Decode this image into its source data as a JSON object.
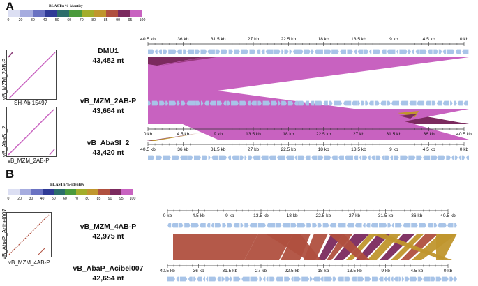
{
  "legend_colors": [
    "#dcdff3",
    "#a6acdf",
    "#6a72c2",
    "#2f3a96",
    "#2c6e6b",
    "#4a9a3c",
    "#a2ad2a",
    "#c0962d",
    "#b0503f",
    "#7b2a5e",
    "#c862c0"
  ],
  "feature_color": "#a8c4e8",
  "panelA": {
    "letter": "A",
    "legend_title": "BLASTn %-identity",
    "legend_ticks": [
      "0",
      "20",
      "30",
      "40",
      "50",
      "60",
      "70",
      "80",
      "85",
      "90",
      "95",
      "100"
    ],
    "dot1": {
      "ylabel": "vB_MZM_2AB-P",
      "xlabel": "SH-Ab 15497"
    },
    "dot2": {
      "ylabel": "vB_AbaSI_2",
      "xlabel": "vB_MZM_2AB-P"
    },
    "genomes": [
      {
        "name": "DMU1",
        "size": "43,482 nt",
        "ticks": [
          "40.5 kb",
          "36 kb",
          "31.5 kb",
          "27 kb",
          "22.5 kb",
          "18 kb",
          "13.5 kb",
          "9 kb",
          "4.5 kb",
          "0 kb"
        ]
      },
      {
        "name": "vB_MZM_2AB-P",
        "size": "43,664 nt",
        "ticks": [
          "0 kb",
          "4.5 kb",
          "9 kb",
          "13.5 kb",
          "18 kb",
          "22.5 kb",
          "27 kb",
          "31.5 kb",
          "36 kb",
          "40.5 kb"
        ]
      },
      {
        "name": "vB_AbaSI_2",
        "size": "43,420 nt",
        "ticks": [
          "40.5 kb",
          "36 kb",
          "31.5 kb",
          "27 kb",
          "22.5 kb",
          "18 kb",
          "13.5 kb",
          "9 kb",
          "4.5 kb",
          "0 kb"
        ]
      }
    ]
  },
  "panelB": {
    "letter": "B",
    "legend_title": "BLASTn %-identity",
    "legend_ticks": [
      "0",
      "20",
      "30",
      "40",
      "50",
      "60",
      "70",
      "80",
      "85",
      "90",
      "95",
      "100"
    ],
    "dot": {
      "ylabel": "vB_AbaP_Acibel007",
      "xlabel": "vB_MZM_4AB-P"
    },
    "genomes": [
      {
        "name": "vB_MZM_4AB-P",
        "size": "42,975 nt",
        "ticks": [
          "0 kb",
          "4.5 kb",
          "9 kb",
          "13.5 kb",
          "18 kb",
          "22.5 kb",
          "27 kb",
          "31.5 kb",
          "36 kb",
          "40.5 kb"
        ]
      },
      {
        "name": "vB_AbaP_Acibel007",
        "size": "42,654 nt",
        "ticks": [
          "40.5 kb",
          "36 kb",
          "31.5 kb",
          "27 kb",
          "22.5 kb",
          "18 kb",
          "13.5 kb",
          "9 kb",
          "4.5 kb",
          "0 kb"
        ]
      }
    ]
  }
}
